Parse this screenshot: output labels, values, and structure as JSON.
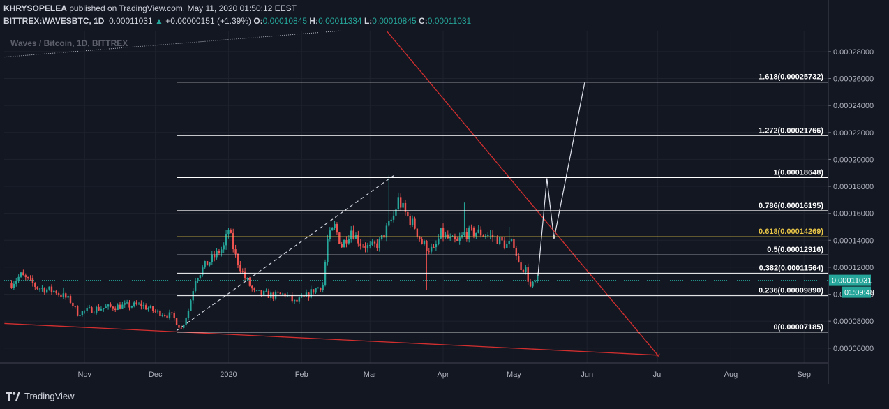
{
  "header": {
    "author": "KHRYSOPELEA",
    "published_text": "published on TradingView.com, May 11, 2020 01:50:12 EEST",
    "symbol": "BITTREX:WAVESBTC, 1D",
    "price": "0.00011031",
    "change": "+0.00000151 (+1.39%)",
    "o_label": "O:",
    "o_value": "0.00010845",
    "h_label": "H:",
    "h_value": "0.00011334",
    "l_label": "L:",
    "l_value": "0.00010845",
    "c_label": "C:",
    "c_value": "0.00011031"
  },
  "watermark": "Waves / Bitcoin, 1D, BITTREX",
  "footer": {
    "brand": "TradingView"
  },
  "colors": {
    "background": "#131722",
    "grid": "#1e222d",
    "up": "#26a69a",
    "down": "#ef5350",
    "trendline": "#d32f2f",
    "fib_line": "#ffffff",
    "fib_gold": "#e8c547"
  },
  "chart_data": {
    "type": "candlestick",
    "symbol": "Waves / Bitcoin",
    "timeframe": "1D",
    "exchange": "BITTREX",
    "ylim": [
      4.9e-05,
      0.0002955
    ],
    "y_ticks": [
      "0.00028000",
      "0.00026000",
      "0.00024000",
      "0.00022000",
      "0.00020000",
      "0.00018000",
      "0.00016000",
      "0.00014000",
      "0.00012000",
      "0.00010000",
      "0.00008000",
      "0.00006000"
    ],
    "x_ticks": [
      "Nov",
      "Dec",
      "2020",
      "Feb",
      "Mar",
      "Apr",
      "May",
      "Jun",
      "Jul",
      "Aug",
      "Sep"
    ],
    "last_price": "0.00011031",
    "countdown": "01:09:48",
    "fib_levels": [
      {
        "ratio": "0",
        "price": "0.00007185",
        "label": "0(0.00007185)"
      },
      {
        "ratio": "0.236",
        "price": "0.00009890",
        "label": "0.236(0.00009890)"
      },
      {
        "ratio": "0.382",
        "price": "0.00011564",
        "label": "0.382(0.00011564)"
      },
      {
        "ratio": "0.5",
        "price": "0.00012916",
        "label": "0.5(0.00012916)"
      },
      {
        "ratio": "0.618",
        "price": "0.00014269",
        "label": "0.618(0.00014269)",
        "color": "gold"
      },
      {
        "ratio": "0.786",
        "price": "0.00016195",
        "label": "0.786(0.00016195)"
      },
      {
        "ratio": "1",
        "price": "0.00018648",
        "label": "1(0.00018648)"
      },
      {
        "ratio": "1.272",
        "price": "0.00021766",
        "label": "1.272(0.00021766)"
      },
      {
        "ratio": "1.618",
        "price": "0.00025732",
        "label": "1.618(0.00025732)"
      }
    ],
    "series": [
      {
        "name": "price_path",
        "points": [
          [
            "2019-10-01",
            0.000108
          ],
          [
            "2019-10-05",
            0.000114
          ],
          [
            "2019-10-12",
            0.000105
          ],
          [
            "2019-10-20",
            0.000102
          ],
          [
            "2019-10-26",
            9.5e-05
          ],
          [
            "2019-10-29",
            8.6e-05
          ],
          [
            "2019-11-05",
            8.9e-05
          ],
          [
            "2019-11-15",
            9.1e-05
          ],
          [
            "2019-11-25",
            9.2e-05
          ],
          [
            "2019-12-01",
            8.7e-05
          ],
          [
            "2019-12-08",
            8.4e-05
          ],
          [
            "2019-12-12",
            7.45e-05
          ],
          [
            "2019-12-15",
            8.8e-05
          ],
          [
            "2019-12-18",
            0.000112
          ],
          [
            "2019-12-22",
            0.000121
          ],
          [
            "2019-12-26",
            0.000128
          ],
          [
            "2019-12-30",
            0.000135
          ],
          [
            "2020-01-01",
            0.000148
          ],
          [
            "2020-01-04",
            0.000128
          ],
          [
            "2020-01-08",
            0.000112
          ],
          [
            "2020-01-12",
            0.000101
          ],
          [
            "2020-01-16",
            0.0001
          ],
          [
            "2020-01-20",
            9.9e-05
          ],
          [
            "2020-01-25",
            0.0001
          ],
          [
            "2020-01-29",
            9.4e-05
          ],
          [
            "2020-02-02",
            9.7e-05
          ],
          [
            "2020-02-06",
            0.000103
          ],
          [
            "2020-02-10",
            0.000107
          ],
          [
            "2020-02-12",
            0.00014
          ],
          [
            "2020-02-15",
            0.00015
          ],
          [
            "2020-02-18",
            0.000136
          ],
          [
            "2020-02-22",
            0.000148
          ],
          [
            "2020-02-26",
            0.000138
          ],
          [
            "2020-03-01",
            0.000134
          ],
          [
            "2020-03-05",
            0.000138
          ],
          [
            "2020-03-08",
            0.000148
          ],
          [
            "2020-03-11",
            0.000158
          ],
          [
            "2020-03-13",
            0.00017
          ],
          [
            "2020-03-16",
            0.00016
          ],
          [
            "2020-03-20",
            0.00015
          ],
          [
            "2020-03-23",
            0.000138
          ],
          [
            "2020-03-26",
            0.000134
          ],
          [
            "2020-03-28",
            0.000132
          ],
          [
            "2020-03-31",
            0.000145
          ],
          [
            "2020-04-04",
            0.00014
          ],
          [
            "2020-04-07",
            0.000138
          ],
          [
            "2020-04-10",
            0.000145
          ],
          [
            "2020-04-15",
            0.000146
          ],
          [
            "2020-04-20",
            0.000144
          ],
          [
            "2020-04-24",
            0.000141
          ],
          [
            "2020-04-28",
            0.000136
          ],
          [
            "2020-05-01",
            0.000138
          ],
          [
            "2020-05-03",
            0.000122
          ],
          [
            "2020-05-06",
            0.000118
          ],
          [
            "2020-05-08",
            0.000105
          ],
          [
            "2020-05-11",
            0.00011
          ]
        ]
      },
      {
        "name": "spike_wicks",
        "points": [
          [
            "2019-10-23",
            0.000105
          ],
          [
            "2020-03-09",
            0.000188
          ],
          [
            "2020-03-25",
            0.000103
          ],
          [
            "2020-04-10",
            0.000168
          ],
          [
            "2020-04-29",
            0.00015
          ]
        ]
      },
      {
        "name": "projection",
        "points": [
          [
            "2020-05-11",
            0.00011
          ],
          [
            "2020-05-15",
            0.000186
          ],
          [
            "2020-05-18",
            0.000141
          ],
          [
            "2020-05-31",
            0.000257
          ]
        ]
      },
      {
        "name": "dashed_fib_anchor",
        "points": [
          [
            "2019-12-10",
            7.3e-05
          ],
          [
            "2020-03-11",
            0.000188
          ]
        ]
      },
      {
        "name": "red_downtrend",
        "points": [
          [
            "2020-03-08",
            0.0002955
          ],
          [
            "2020-07-01",
            5.48e-05
          ]
        ]
      },
      {
        "name": "red_support",
        "points": [
          [
            "2019-09-28",
            7.83e-05
          ],
          [
            "2020-07-01",
            5.48e-05
          ]
        ]
      },
      {
        "name": "dotted_line",
        "points": [
          [
            "2019-09-28",
            0.000276
          ],
          [
            "2020-02-18",
            0.0002955
          ]
        ]
      }
    ]
  }
}
